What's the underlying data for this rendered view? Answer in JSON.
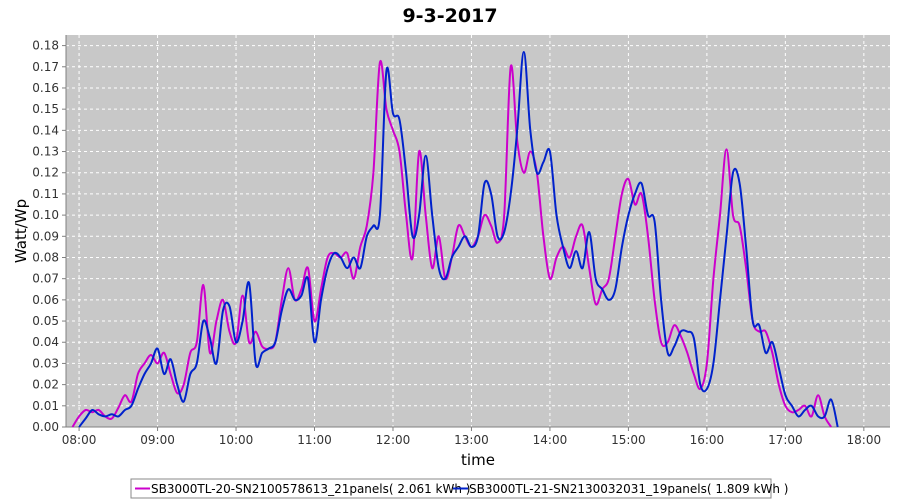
{
  "chart_data": {
    "type": "line",
    "title": "9-3-2017",
    "xlabel": "time",
    "ylabel": "Watt/Wp",
    "xlim": [
      "07:50",
      "18:20"
    ],
    "ylim": [
      0,
      0.185
    ],
    "x_ticks": [
      "08:00",
      "09:00",
      "10:00",
      "11:00",
      "12:00",
      "13:00",
      "14:00",
      "15:00",
      "16:00",
      "17:00",
      "18:00"
    ],
    "y_ticks": [
      "0.00",
      "0.01",
      "0.02",
      "0.03",
      "0.04",
      "0.05",
      "0.06",
      "0.07",
      "0.08",
      "0.09",
      "0.10",
      "0.11",
      "0.12",
      "0.13",
      "0.14",
      "0.15",
      "0.16",
      "0.17",
      "0.18"
    ],
    "grid": true,
    "legend_position": "bottom",
    "series": [
      {
        "name": "SB3000TL-20-SN2100578613_21panels( 2.061 kWh )",
        "color": "#cc00cc",
        "points": [
          [
            "07:55",
            0.0
          ],
          [
            "08:00",
            0.005
          ],
          [
            "08:05",
            0.008
          ],
          [
            "08:10",
            0.007
          ],
          [
            "08:15",
            0.008
          ],
          [
            "08:20",
            0.005
          ],
          [
            "08:25",
            0.004
          ],
          [
            "08:30",
            0.009
          ],
          [
            "08:35",
            0.015
          ],
          [
            "08:40",
            0.012
          ],
          [
            "08:45",
            0.025
          ],
          [
            "08:50",
            0.03
          ],
          [
            "08:55",
            0.034
          ],
          [
            "09:00",
            0.03
          ],
          [
            "09:05",
            0.035
          ],
          [
            "09:10",
            0.025
          ],
          [
            "09:15",
            0.016
          ],
          [
            "09:20",
            0.02
          ],
          [
            "09:25",
            0.035
          ],
          [
            "09:30",
            0.04
          ],
          [
            "09:35",
            0.067
          ],
          [
            "09:40",
            0.035
          ],
          [
            "09:45",
            0.05
          ],
          [
            "09:50",
            0.06
          ],
          [
            "09:55",
            0.045
          ],
          [
            "10:00",
            0.04
          ],
          [
            "10:05",
            0.062
          ],
          [
            "10:10",
            0.04
          ],
          [
            "10:15",
            0.045
          ],
          [
            "10:20",
            0.038
          ],
          [
            "10:25",
            0.037
          ],
          [
            "10:30",
            0.04
          ],
          [
            "10:35",
            0.06
          ],
          [
            "10:40",
            0.075
          ],
          [
            "10:45",
            0.06
          ],
          [
            "10:50",
            0.065
          ],
          [
            "10:55",
            0.075
          ],
          [
            "11:00",
            0.05
          ],
          [
            "11:05",
            0.065
          ],
          [
            "11:10",
            0.08
          ],
          [
            "11:15",
            0.082
          ],
          [
            "11:20",
            0.08
          ],
          [
            "11:25",
            0.082
          ],
          [
            "11:30",
            0.07
          ],
          [
            "11:35",
            0.085
          ],
          [
            "11:40",
            0.095
          ],
          [
            "11:45",
            0.12
          ],
          [
            "11:50",
            0.172
          ],
          [
            "11:55",
            0.15
          ],
          [
            "12:00",
            0.14
          ],
          [
            "12:05",
            0.13
          ],
          [
            "12:10",
            0.1
          ],
          [
            "12:15",
            0.08
          ],
          [
            "12:20",
            0.13
          ],
          [
            "12:25",
            0.1
          ],
          [
            "12:30",
            0.075
          ],
          [
            "12:35",
            0.09
          ],
          [
            "12:40",
            0.07
          ],
          [
            "12:45",
            0.08
          ],
          [
            "12:50",
            0.095
          ],
          [
            "12:55",
            0.09
          ],
          [
            "13:00",
            0.085
          ],
          [
            "13:05",
            0.09
          ],
          [
            "13:10",
            0.1
          ],
          [
            "13:15",
            0.095
          ],
          [
            "13:20",
            0.087
          ],
          [
            "13:25",
            0.1
          ],
          [
            "13:30",
            0.17
          ],
          [
            "13:35",
            0.135
          ],
          [
            "13:40",
            0.12
          ],
          [
            "13:45",
            0.13
          ],
          [
            "13:50",
            0.12
          ],
          [
            "13:55",
            0.09
          ],
          [
            "14:00",
            0.07
          ],
          [
            "14:05",
            0.08
          ],
          [
            "14:10",
            0.085
          ],
          [
            "14:15",
            0.08
          ],
          [
            "14:20",
            0.09
          ],
          [
            "14:25",
            0.095
          ],
          [
            "14:30",
            0.075
          ],
          [
            "14:35",
            0.058
          ],
          [
            "14:40",
            0.065
          ],
          [
            "14:45",
            0.07
          ],
          [
            "14:50",
            0.09
          ],
          [
            "14:55",
            0.11
          ],
          [
            "15:00",
            0.117
          ],
          [
            "15:05",
            0.105
          ],
          [
            "15:10",
            0.11
          ],
          [
            "15:15",
            0.09
          ],
          [
            "15:20",
            0.06
          ],
          [
            "15:25",
            0.04
          ],
          [
            "15:30",
            0.04
          ],
          [
            "15:35",
            0.048
          ],
          [
            "15:40",
            0.043
          ],
          [
            "15:45",
            0.035
          ],
          [
            "15:50",
            0.025
          ],
          [
            "15:55",
            0.018
          ],
          [
            "16:00",
            0.03
          ],
          [
            "16:05",
            0.07
          ],
          [
            "16:10",
            0.1
          ],
          [
            "16:15",
            0.131
          ],
          [
            "16:20",
            0.1
          ],
          [
            "16:25",
            0.095
          ],
          [
            "16:30",
            0.075
          ],
          [
            "16:35",
            0.05
          ],
          [
            "16:40",
            0.045
          ],
          [
            "16:45",
            0.045
          ],
          [
            "16:50",
            0.035
          ],
          [
            "16:55",
            0.02
          ],
          [
            "17:00",
            0.01
          ],
          [
            "17:05",
            0.007
          ],
          [
            "17:10",
            0.008
          ],
          [
            "17:15",
            0.01
          ],
          [
            "17:20",
            0.005
          ],
          [
            "17:25",
            0.015
          ],
          [
            "17:30",
            0.005
          ],
          [
            "17:35",
            0.0
          ]
        ]
      },
      {
        "name": "SB3000TL-21-SN2130032031_19panels( 1.809 kWh )",
        "color": "#0022cc",
        "points": [
          [
            "08:00",
            0.0
          ],
          [
            "08:05",
            0.004
          ],
          [
            "08:10",
            0.008
          ],
          [
            "08:15",
            0.006
          ],
          [
            "08:20",
            0.005
          ],
          [
            "08:25",
            0.006
          ],
          [
            "08:30",
            0.005
          ],
          [
            "08:35",
            0.008
          ],
          [
            "08:40",
            0.01
          ],
          [
            "08:45",
            0.018
          ],
          [
            "08:50",
            0.025
          ],
          [
            "08:55",
            0.03
          ],
          [
            "09:00",
            0.037
          ],
          [
            "09:05",
            0.025
          ],
          [
            "09:10",
            0.032
          ],
          [
            "09:15",
            0.02
          ],
          [
            "09:20",
            0.012
          ],
          [
            "09:25",
            0.025
          ],
          [
            "09:30",
            0.03
          ],
          [
            "09:35",
            0.05
          ],
          [
            "09:40",
            0.042
          ],
          [
            "09:45",
            0.03
          ],
          [
            "09:50",
            0.055
          ],
          [
            "09:55",
            0.057
          ],
          [
            "10:00",
            0.04
          ],
          [
            "10:05",
            0.05
          ],
          [
            "10:10",
            0.068
          ],
          [
            "10:15",
            0.03
          ],
          [
            "10:20",
            0.035
          ],
          [
            "10:25",
            0.037
          ],
          [
            "10:30",
            0.04
          ],
          [
            "10:35",
            0.055
          ],
          [
            "10:40",
            0.065
          ],
          [
            "10:45",
            0.06
          ],
          [
            "10:50",
            0.062
          ],
          [
            "10:55",
            0.07
          ],
          [
            "11:00",
            0.04
          ],
          [
            "11:05",
            0.06
          ],
          [
            "11:10",
            0.075
          ],
          [
            "11:15",
            0.082
          ],
          [
            "11:20",
            0.08
          ],
          [
            "11:25",
            0.075
          ],
          [
            "11:30",
            0.08
          ],
          [
            "11:35",
            0.075
          ],
          [
            "11:40",
            0.09
          ],
          [
            "11:45",
            0.095
          ],
          [
            "11:50",
            0.1
          ],
          [
            "11:55",
            0.168
          ],
          [
            "12:00",
            0.148
          ],
          [
            "12:05",
            0.145
          ],
          [
            "12:10",
            0.12
          ],
          [
            "12:15",
            0.09
          ],
          [
            "12:20",
            0.1
          ],
          [
            "12:25",
            0.128
          ],
          [
            "12:30",
            0.1
          ],
          [
            "12:35",
            0.075
          ],
          [
            "12:40",
            0.07
          ],
          [
            "12:45",
            0.08
          ],
          [
            "12:50",
            0.085
          ],
          [
            "12:55",
            0.09
          ],
          [
            "13:00",
            0.085
          ],
          [
            "13:05",
            0.09
          ],
          [
            "13:10",
            0.115
          ],
          [
            "13:15",
            0.11
          ],
          [
            "13:20",
            0.09
          ],
          [
            "13:25",
            0.092
          ],
          [
            "13:30",
            0.11
          ],
          [
            "13:35",
            0.14
          ],
          [
            "13:40",
            0.177
          ],
          [
            "13:45",
            0.14
          ],
          [
            "13:50",
            0.12
          ],
          [
            "13:55",
            0.125
          ],
          [
            "14:00",
            0.13
          ],
          [
            "14:05",
            0.1
          ],
          [
            "14:10",
            0.085
          ],
          [
            "14:15",
            0.075
          ],
          [
            "14:20",
            0.083
          ],
          [
            "14:25",
            0.075
          ],
          [
            "14:30",
            0.092
          ],
          [
            "14:35",
            0.07
          ],
          [
            "14:40",
            0.065
          ],
          [
            "14:45",
            0.06
          ],
          [
            "14:50",
            0.065
          ],
          [
            "14:55",
            0.085
          ],
          [
            "15:00",
            0.1
          ],
          [
            "15:05",
            0.11
          ],
          [
            "15:10",
            0.115
          ],
          [
            "15:15",
            0.1
          ],
          [
            "15:20",
            0.097
          ],
          [
            "15:25",
            0.06
          ],
          [
            "15:30",
            0.035
          ],
          [
            "15:35",
            0.038
          ],
          [
            "15:40",
            0.045
          ],
          [
            "15:45",
            0.045
          ],
          [
            "15:50",
            0.042
          ],
          [
            "15:55",
            0.02
          ],
          [
            "16:00",
            0.018
          ],
          [
            "16:05",
            0.03
          ],
          [
            "16:10",
            0.06
          ],
          [
            "16:15",
            0.09
          ],
          [
            "16:20",
            0.12
          ],
          [
            "16:25",
            0.115
          ],
          [
            "16:30",
            0.085
          ],
          [
            "16:35",
            0.05
          ],
          [
            "16:40",
            0.048
          ],
          [
            "16:45",
            0.035
          ],
          [
            "16:50",
            0.04
          ],
          [
            "16:55",
            0.028
          ],
          [
            "17:00",
            0.015
          ],
          [
            "17:05",
            0.01
          ],
          [
            "17:10",
            0.005
          ],
          [
            "17:15",
            0.008
          ],
          [
            "17:20",
            0.01
          ],
          [
            "17:25",
            0.005
          ],
          [
            "17:30",
            0.005
          ],
          [
            "17:35",
            0.013
          ],
          [
            "17:40",
            0.0
          ]
        ]
      }
    ]
  }
}
